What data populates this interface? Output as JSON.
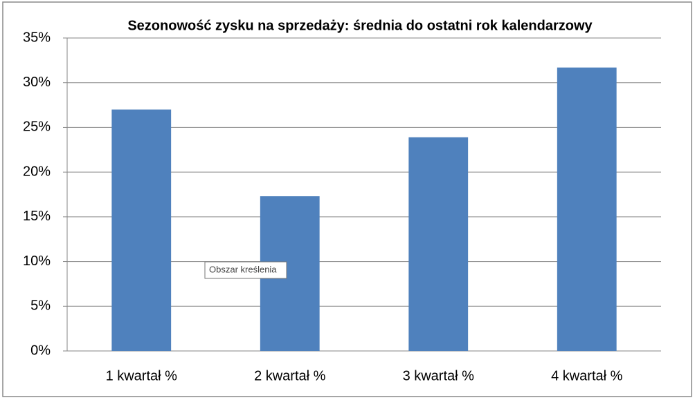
{
  "chart_data": {
    "type": "bar",
    "title": "Sezonowość zysku na sprzedaży: średnia do ostatni rok kalendarzowy",
    "categories": [
      "1 kwartał %",
      "2 kwartał %",
      "3 kwartał %",
      "4 kwartał %"
    ],
    "values": [
      27,
      17.3,
      23.9,
      31.7
    ],
    "color": "#4f81bd",
    "ylim": [
      0,
      35
    ],
    "yticks": [
      {
        "value": 0,
        "label": "0%"
      },
      {
        "value": 5,
        "label": "5%"
      },
      {
        "value": 10,
        "label": "10%"
      },
      {
        "value": 15,
        "label": "15%"
      },
      {
        "value": 20,
        "label": "20%"
      },
      {
        "value": 25,
        "label": "25%"
      },
      {
        "value": 30,
        "label": "30%"
      },
      {
        "value": 35,
        "label": "35%"
      }
    ],
    "grid": true,
    "tooltip": "Obszar kreślenia"
  }
}
